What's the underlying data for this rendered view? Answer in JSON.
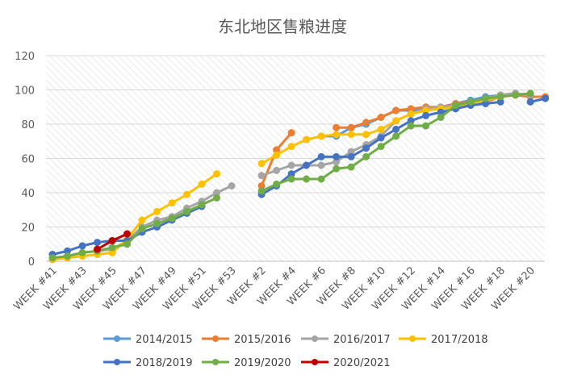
{
  "chart_data": {
    "type": "line",
    "title": "东北地区售粮进度",
    "xlabel": "",
    "ylabel": "",
    "ylim": [
      0,
      120
    ],
    "yticks": [
      0,
      20,
      40,
      60,
      80,
      100,
      120
    ],
    "legend_position": "bottom",
    "grid": "hatched-background",
    "tick_labels": [
      "WEEK #41",
      "WEEK #43",
      "WEEK #45",
      "WEEK #47",
      "WEEK #49",
      "WEEK #51",
      "WEEK #53",
      "WEEK #2",
      "WEEK #4",
      "WEEK #6",
      "WEEK #8",
      "WEEK #10",
      "WEEK #12",
      "WEEK #14",
      "WEEK #16",
      "WEEK #18",
      "WEEK #20"
    ],
    "x": [
      "WEEK #41",
      "WEEK #42",
      "WEEK #43",
      "WEEK #44",
      "WEEK #45",
      "WEEK #46",
      "WEEK #47",
      "WEEK #48",
      "WEEK #49",
      "WEEK #50",
      "WEEK #51",
      "WEEK #52",
      "WEEK #53",
      "WEEK #1",
      "WEEK #2",
      "WEEK #3",
      "WEEK #4",
      "WEEK #5",
      "WEEK #6",
      "WEEK #7",
      "WEEK #8",
      "WEEK #9",
      "WEEK #10",
      "WEEK #11",
      "WEEK #12",
      "WEEK #13",
      "WEEK #14",
      "WEEK #15",
      "WEEK #16",
      "WEEK #17",
      "WEEK #18",
      "WEEK #19",
      "WEEK #20",
      "WEEK #21"
    ],
    "series": [
      {
        "name": "2014/2015",
        "color": "#5b9bd5",
        "values": [
          null,
          null,
          null,
          null,
          null,
          null,
          null,
          null,
          null,
          null,
          null,
          null,
          null,
          null,
          null,
          null,
          null,
          null,
          73,
          73,
          78,
          80,
          84,
          88,
          88,
          89,
          89,
          92,
          94,
          96,
          97,
          98,
          null,
          null
        ]
      },
      {
        "name": "2015/2016",
        "color": "#ed7d31",
        "values": [
          null,
          null,
          null,
          null,
          null,
          null,
          null,
          null,
          null,
          null,
          null,
          null,
          null,
          null,
          44,
          65,
          75,
          null,
          null,
          78,
          78,
          81,
          84,
          88,
          89,
          90,
          90,
          92,
          93,
          93,
          96,
          97,
          96,
          96
        ]
      },
      {
        "name": "2016/2017",
        "color": "#a5a5a5",
        "values": [
          1,
          3,
          5,
          6,
          7,
          12,
          20,
          24,
          26,
          31,
          35,
          40,
          44,
          null,
          50,
          53,
          56,
          56,
          56,
          58,
          64,
          68,
          73,
          82,
          86,
          89,
          90,
          91,
          93,
          95,
          97,
          98,
          97,
          null
        ]
      },
      {
        "name": "2017/2018",
        "color": "#ffc000",
        "values": [
          1,
          2,
          3,
          4,
          5,
          13,
          24,
          29,
          34,
          39,
          45,
          51,
          null,
          null,
          57,
          62,
          67,
          71,
          73,
          74,
          74,
          74,
          77,
          82,
          86,
          88,
          89,
          90,
          92,
          94,
          96,
          97,
          null,
          null
        ]
      },
      {
        "name": "2018/2019",
        "color": "#4472c4",
        "values": [
          4,
          6,
          9,
          11,
          12,
          12,
          17,
          20,
          24,
          28,
          32,
          null,
          null,
          null,
          39,
          44,
          51,
          56,
          61,
          61,
          61,
          66,
          72,
          77,
          82,
          85,
          87,
          89,
          91,
          92,
          93,
          null,
          93,
          95
        ]
      },
      {
        "name": "2019/2020",
        "color": "#70ad47",
        "values": [
          2,
          3,
          5,
          6,
          8,
          10,
          19,
          22,
          25,
          29,
          33,
          37,
          null,
          null,
          41,
          45,
          48,
          48,
          48,
          54,
          55,
          61,
          67,
          73,
          79,
          79,
          84,
          91,
          93,
          95,
          96,
          97,
          98,
          null
        ]
      },
      {
        "name": "2020/2021",
        "color": "#c00000",
        "values": [
          null,
          null,
          null,
          7,
          12,
          16,
          null,
          null,
          null,
          null,
          null,
          null,
          null,
          null,
          null,
          null,
          null,
          null,
          null,
          null,
          null,
          null,
          null,
          null,
          null,
          null,
          null,
          null,
          null,
          null,
          null,
          null,
          null,
          null
        ]
      }
    ]
  }
}
